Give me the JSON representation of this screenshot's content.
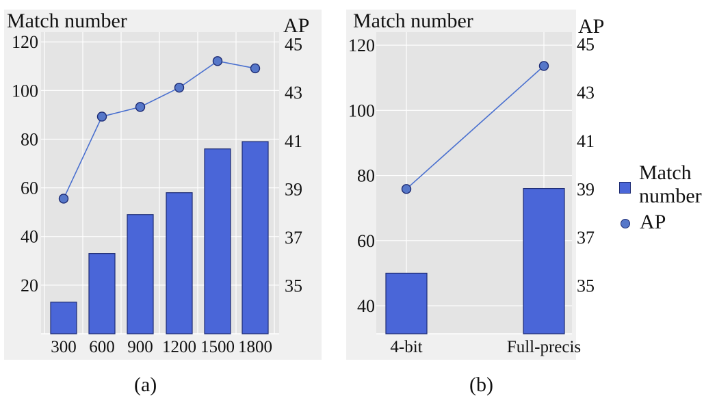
{
  "colors": {
    "bar": "#4a66d8",
    "bar_edge": "#1d2b73",
    "line": "#4a70cf",
    "marker": "#5677c9",
    "panel_bg": "#e4e4e4",
    "grid": "#ffffff"
  },
  "legend": {
    "items": [
      {
        "label": "Match\nnumber",
        "marker": "square"
      },
      {
        "label": "AP",
        "marker": "circle"
      }
    ]
  },
  "captions": {
    "a": "(a)",
    "b": "(b)"
  },
  "chart_data": [
    {
      "type": "bar+line",
      "panel": "(a)",
      "categories": [
        "300",
        "600",
        "900",
        "1200",
        "1500",
        "1800"
      ],
      "series": [
        {
          "name": "Match number",
          "type": "bar",
          "axis": "left",
          "values": [
            13,
            33,
            49,
            58,
            76,
            79
          ]
        },
        {
          "name": "AP",
          "type": "line",
          "axis": "right",
          "values": [
            38.6,
            42.0,
            42.4,
            43.2,
            44.3,
            44.0
          ]
        }
      ],
      "ylabel": "Match number",
      "y2label": "AP",
      "ylim": [
        0,
        124
      ],
      "yticks": [
        20,
        40,
        60,
        80,
        100,
        120
      ],
      "y2lim": [
        33.0,
        45.5
      ],
      "y2ticks": [
        35,
        37,
        39,
        41,
        43,
        45
      ],
      "grid": true
    },
    {
      "type": "bar+line",
      "panel": "(b)",
      "categories": [
        "4-bit",
        "Full-precis"
      ],
      "series": [
        {
          "name": "Match number",
          "type": "bar",
          "axis": "left",
          "values": [
            50,
            76
          ]
        },
        {
          "name": "AP",
          "type": "line",
          "axis": "right",
          "values": [
            39.0,
            44.1
          ]
        }
      ],
      "ylabel": "Match number",
      "y2label": "AP",
      "ylim": [
        31.4,
        124
      ],
      "yticks": [
        40,
        60,
        80,
        100,
        120
      ],
      "y2lim": [
        33.0,
        45.5
      ],
      "y2ticks": [
        35,
        37,
        39,
        41,
        43,
        45
      ],
      "grid": true
    }
  ]
}
